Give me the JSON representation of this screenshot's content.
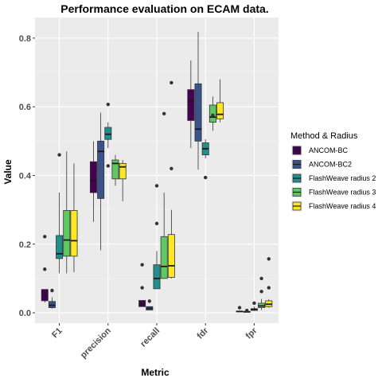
{
  "chart_data": {
    "type": "boxplot",
    "title": "Performance evaluation on ECAM data.",
    "xlabel": "Metric",
    "ylabel": "Value",
    "ylim": [
      -0.03,
      0.86
    ],
    "yticks": [
      0.0,
      0.2,
      0.4,
      0.6,
      0.8
    ],
    "ytick_labels": [
      "0.0",
      "0.2",
      "0.4",
      "0.6",
      "0.8"
    ],
    "categories": [
      "F1",
      "precision",
      "recall",
      "fdr",
      "fpr"
    ],
    "grid": true,
    "legend": {
      "title": "Method & Radius",
      "placement": "right",
      "entries": [
        "ANCOM-BC",
        "ANCOM-BC2",
        "FlashWeave radius 2",
        "FlashWeave radius 3",
        "FlashWeave radius 4"
      ]
    },
    "colors": [
      "#440154",
      "#3b528b",
      "#21908c",
      "#5ec962",
      "#fde725"
    ],
    "series": [
      {
        "name": "ANCOM-BC",
        "boxes": [
          {
            "min": 0.03,
            "q1": 0.035,
            "median": 0.05,
            "q3": 0.068,
            "max": 0.068,
            "outliers": [
              0.127,
              0.222
            ]
          },
          {
            "min": 0.265,
            "q1": 0.35,
            "median": 0.385,
            "q3": 0.44,
            "max": 0.5,
            "outliers": []
          },
          {
            "min": 0.018,
            "q1": 0.018,
            "median": 0.025,
            "q3": 0.036,
            "max": 0.036,
            "outliers": [
              0.073,
              0.14
            ]
          },
          {
            "min": 0.48,
            "q1": 0.56,
            "median": 0.615,
            "q3": 0.65,
            "max": 0.735,
            "outliers": []
          },
          {
            "min": 0.003,
            "q1": 0.003,
            "median": 0.004,
            "q3": 0.005,
            "max": 0.006,
            "outliers": [
              0.015
            ]
          }
        ]
      },
      {
        "name": "ANCOM-BC2",
        "boxes": [
          {
            "min": 0.012,
            "q1": 0.015,
            "median": 0.022,
            "q3": 0.033,
            "max": 0.045,
            "outliers": [
              0.065
            ]
          },
          {
            "min": 0.182,
            "q1": 0.333,
            "median": 0.47,
            "q3": 0.5,
            "max": 0.583,
            "outliers": []
          },
          {
            "min": 0.008,
            "q1": 0.008,
            "median": 0.013,
            "q3": 0.018,
            "max": 0.018,
            "outliers": [
              0.034
            ]
          },
          {
            "min": 0.417,
            "q1": 0.5,
            "median": 0.535,
            "q3": 0.667,
            "max": 0.818,
            "outliers": []
          },
          {
            "min": 0.001,
            "q1": 0.002,
            "median": 0.003,
            "q3": 0.004,
            "max": 0.005,
            "outliers": [
              0.007
            ]
          }
        ]
      },
      {
        "name": "FlashWeave radius 2",
        "boxes": [
          {
            "min": 0.115,
            "q1": 0.158,
            "median": 0.172,
            "q3": 0.225,
            "max": 0.35,
            "outliers": [
              0.46
            ]
          },
          {
            "min": 0.48,
            "q1": 0.505,
            "median": 0.52,
            "q3": 0.54,
            "max": 0.555,
            "outliers": [
              0.428,
              0.607
            ]
          },
          {
            "min": 0.07,
            "q1": 0.07,
            "median": 0.1,
            "q3": 0.14,
            "max": 0.18,
            "outliers": [
              0.26,
              0.37
            ]
          },
          {
            "min": 0.45,
            "q1": 0.46,
            "median": 0.478,
            "q3": 0.495,
            "max": 0.505,
            "outliers": [
              0.394
            ]
          },
          {
            "min": 0.005,
            "q1": 0.007,
            "median": 0.01,
            "q3": 0.012,
            "max": 0.018,
            "outliers": [
              0.028
            ]
          }
        ]
      },
      {
        "name": "FlashWeave radius 3",
        "boxes": [
          {
            "min": 0.115,
            "q1": 0.165,
            "median": 0.212,
            "q3": 0.298,
            "max": 0.47,
            "outliers": []
          },
          {
            "min": 0.37,
            "q1": 0.39,
            "median": 0.435,
            "q3": 0.445,
            "max": 0.46,
            "outliers": []
          },
          {
            "min": 0.1,
            "q1": 0.1,
            "median": 0.135,
            "q3": 0.222,
            "max": 0.35,
            "outliers": [
              0.58
            ]
          },
          {
            "min": 0.53,
            "q1": 0.555,
            "median": 0.57,
            "q3": 0.605,
            "max": 0.63,
            "outliers": [
              0.575
            ]
          },
          {
            "min": 0.008,
            "q1": 0.015,
            "median": 0.02,
            "q3": 0.028,
            "max": 0.04,
            "outliers": [
              0.062,
              0.1
            ]
          }
        ]
      },
      {
        "name": "FlashWeave radius 4",
        "boxes": [
          {
            "min": 0.118,
            "q1": 0.165,
            "median": 0.21,
            "q3": 0.298,
            "max": 0.435,
            "outliers": []
          },
          {
            "min": 0.325,
            "q1": 0.39,
            "median": 0.425,
            "q3": 0.435,
            "max": 0.445,
            "outliers": []
          },
          {
            "min": 0.1,
            "q1": 0.103,
            "median": 0.137,
            "q3": 0.228,
            "max": 0.3,
            "outliers": [
              0.42,
              0.67
            ]
          },
          {
            "min": 0.555,
            "q1": 0.565,
            "median": 0.578,
            "q3": 0.612,
            "max": 0.68,
            "outliers": []
          },
          {
            "min": 0.015,
            "q1": 0.018,
            "median": 0.025,
            "q3": 0.035,
            "max": 0.04,
            "outliers": [
              0.073,
              0.157
            ]
          }
        ]
      }
    ]
  }
}
